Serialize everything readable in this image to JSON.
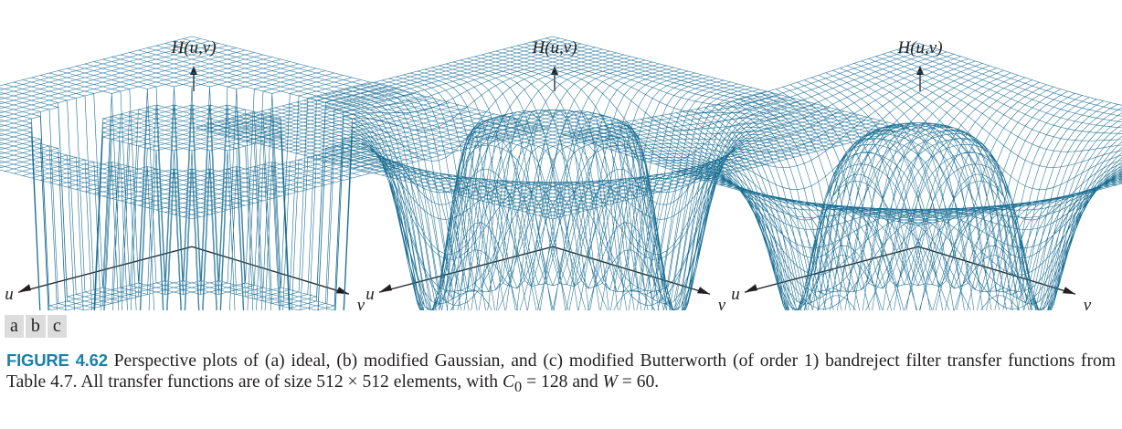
{
  "panels": [
    {
      "id": "a",
      "kind": "ideal",
      "z_label": "H(u,v)",
      "u_label": "u",
      "v_label": "v"
    },
    {
      "id": "b",
      "kind": "gaussian",
      "z_label": "H(u,v)",
      "u_label": "u",
      "v_label": "v"
    },
    {
      "id": "c",
      "kind": "butterworth",
      "z_label": "H(u,v)",
      "u_label": "u",
      "v_label": "v"
    }
  ],
  "panel_labels": [
    "a",
    "b",
    "c"
  ],
  "plot_color": "#1a6e93",
  "caption": {
    "label": "FIGURE 4.62",
    "text1": " Perspective plots of (a) ideal, (b) modified Gaussian, and (c) modified Butterworth (of order 1) bandreject filter transfer functions from Table 4.7. All transfer functions are of size 512 × 512 elements, with ",
    "c0_var": "C",
    "c0_sub": "0",
    "text2": " = 128 and ",
    "w_var": "W",
    "text3": " = 60."
  }
}
